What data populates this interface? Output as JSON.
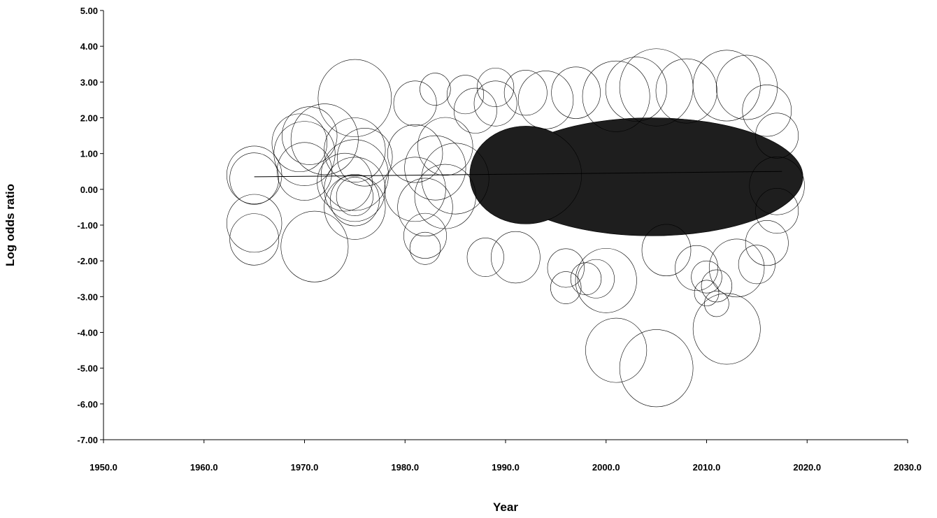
{
  "chart_data": {
    "type": "scatter",
    "title": "",
    "xlabel": "Year",
    "ylabel": "Log odds ratio",
    "xlim": [
      1950,
      2030
    ],
    "ylim": [
      -7,
      5
    ],
    "x_ticks": [
      "1950.0",
      "1960.0",
      "1970.0",
      "1980.0",
      "1990.0",
      "2000.0",
      "2010.0",
      "2020.0",
      "2030.0"
    ],
    "y_ticks": [
      "5.00",
      "4.00",
      "3.00",
      "2.00",
      "1.00",
      "0.00",
      "-1.00",
      "-2.00",
      "-3.00",
      "-4.00",
      "-5.00",
      "-6.00",
      "-7.00"
    ],
    "grid": false,
    "bubble_style": "open circles, size proportional to study weight",
    "regression_line": {
      "x": [
        1965,
        2017.5
      ],
      "y": [
        0.35,
        0.5
      ]
    },
    "dense_region": {
      "x_range": [
        1986,
        2017.5
      ],
      "y_range": [
        -1.3,
        2.0
      ]
    },
    "points": [
      {
        "x": 1965,
        "y": 0.4,
        "size": 0.9
      },
      {
        "x": 1965,
        "y": 0.3,
        "size": 0.8
      },
      {
        "x": 1965,
        "y": -0.95,
        "size": 0.9
      },
      {
        "x": 1965,
        "y": -1.4,
        "size": 0.8
      },
      {
        "x": 1969.5,
        "y": 1.3,
        "size": 0.9
      },
      {
        "x": 1970,
        "y": 1.0,
        "size": 1.0
      },
      {
        "x": 1970,
        "y": 0.5,
        "size": 0.9
      },
      {
        "x": 1970.5,
        "y": 1.5,
        "size": 0.9
      },
      {
        "x": 1971,
        "y": -1.6,
        "size": 1.1
      },
      {
        "x": 1972,
        "y": 1.4,
        "size": 1.1
      },
      {
        "x": 1975,
        "y": 2.55,
        "size": 1.2
      },
      {
        "x": 1975,
        "y": 1.1,
        "size": 1.0
      },
      {
        "x": 1975,
        "y": 0.4,
        "size": 1.1
      },
      {
        "x": 1975,
        "y": 0.0,
        "size": 1.0
      },
      {
        "x": 1975,
        "y": -0.3,
        "size": 0.8
      },
      {
        "x": 1975,
        "y": -0.5,
        "size": 1.0
      },
      {
        "x": 1975,
        "y": -0.2,
        "size": 0.6
      },
      {
        "x": 1976,
        "y": 0.9,
        "size": 0.9
      },
      {
        "x": 1974,
        "y": 0.2,
        "size": 0.9
      },
      {
        "x": 1981,
        "y": 2.4,
        "size": 0.7
      },
      {
        "x": 1983,
        "y": 2.8,
        "size": 0.5
      },
      {
        "x": 1981,
        "y": 1.0,
        "size": 0.9
      },
      {
        "x": 1981,
        "y": 0.0,
        "size": 1.0
      },
      {
        "x": 1982,
        "y": -0.5,
        "size": 0.9
      },
      {
        "x": 1982,
        "y": -1.3,
        "size": 0.7
      },
      {
        "x": 1982,
        "y": -1.65,
        "size": 0.5
      },
      {
        "x": 1983,
        "y": 0.6,
        "size": 1.0
      },
      {
        "x": 1984,
        "y": -0.2,
        "size": 1.0
      },
      {
        "x": 1984,
        "y": 1.2,
        "size": 0.9
      },
      {
        "x": 1985,
        "y": 0.3,
        "size": 1.1
      },
      {
        "x": 1986,
        "y": 2.65,
        "size": 0.6
      },
      {
        "x": 1987,
        "y": 2.2,
        "size": 0.7
      },
      {
        "x": 1988,
        "y": -1.9,
        "size": 0.6
      },
      {
        "x": 1989,
        "y": 2.85,
        "size": 0.6
      },
      {
        "x": 1989,
        "y": 2.4,
        "size": 0.7
      },
      {
        "x": 1991,
        "y": -1.9,
        "size": 0.8
      },
      {
        "x": 1992,
        "y": 2.7,
        "size": 0.7
      },
      {
        "x": 1994,
        "y": 2.5,
        "size": 0.9
      },
      {
        "x": 1996,
        "y": -2.75,
        "size": 0.5
      },
      {
        "x": 1996,
        "y": -2.2,
        "size": 0.6
      },
      {
        "x": 1997,
        "y": 2.7,
        "size": 0.8
      },
      {
        "x": 1998,
        "y": -2.5,
        "size": 0.5
      },
      {
        "x": 1999,
        "y": -2.5,
        "size": 0.6
      },
      {
        "x": 2000,
        "y": -2.55,
        "size": 1.0
      },
      {
        "x": 2001,
        "y": -4.5,
        "size": 1.0
      },
      {
        "x": 2001,
        "y": 2.6,
        "size": 1.1
      },
      {
        "x": 2003,
        "y": 2.8,
        "size": 1.0
      },
      {
        "x": 2005,
        "y": -5.0,
        "size": 1.2
      },
      {
        "x": 2005,
        "y": 2.85,
        "size": 1.2
      },
      {
        "x": 2006,
        "y": -1.7,
        "size": 0.8
      },
      {
        "x": 2008,
        "y": 2.75,
        "size": 1.0
      },
      {
        "x": 2009,
        "y": -2.2,
        "size": 0.7
      },
      {
        "x": 2010,
        "y": -2.45,
        "size": 0.5
      },
      {
        "x": 2010,
        "y": -2.9,
        "size": 0.4
      },
      {
        "x": 2011,
        "y": -3.2,
        "size": 0.4
      },
      {
        "x": 2011,
        "y": -2.7,
        "size": 0.5
      },
      {
        "x": 2012,
        "y": -3.9,
        "size": 1.1
      },
      {
        "x": 2012,
        "y": 2.9,
        "size": 1.1
      },
      {
        "x": 2013,
        "y": -2.2,
        "size": 0.9
      },
      {
        "x": 2014,
        "y": 2.85,
        "size": 1.0
      },
      {
        "x": 2015,
        "y": -2.1,
        "size": 0.6
      },
      {
        "x": 2016,
        "y": 2.2,
        "size": 0.8
      },
      {
        "x": 2016,
        "y": -1.5,
        "size": 0.7
      },
      {
        "x": 2017,
        "y": 0.1,
        "size": 0.9
      },
      {
        "x": 2017,
        "y": 1.5,
        "size": 0.7
      },
      {
        "x": 2017,
        "y": -0.6,
        "size": 0.7
      }
    ]
  }
}
